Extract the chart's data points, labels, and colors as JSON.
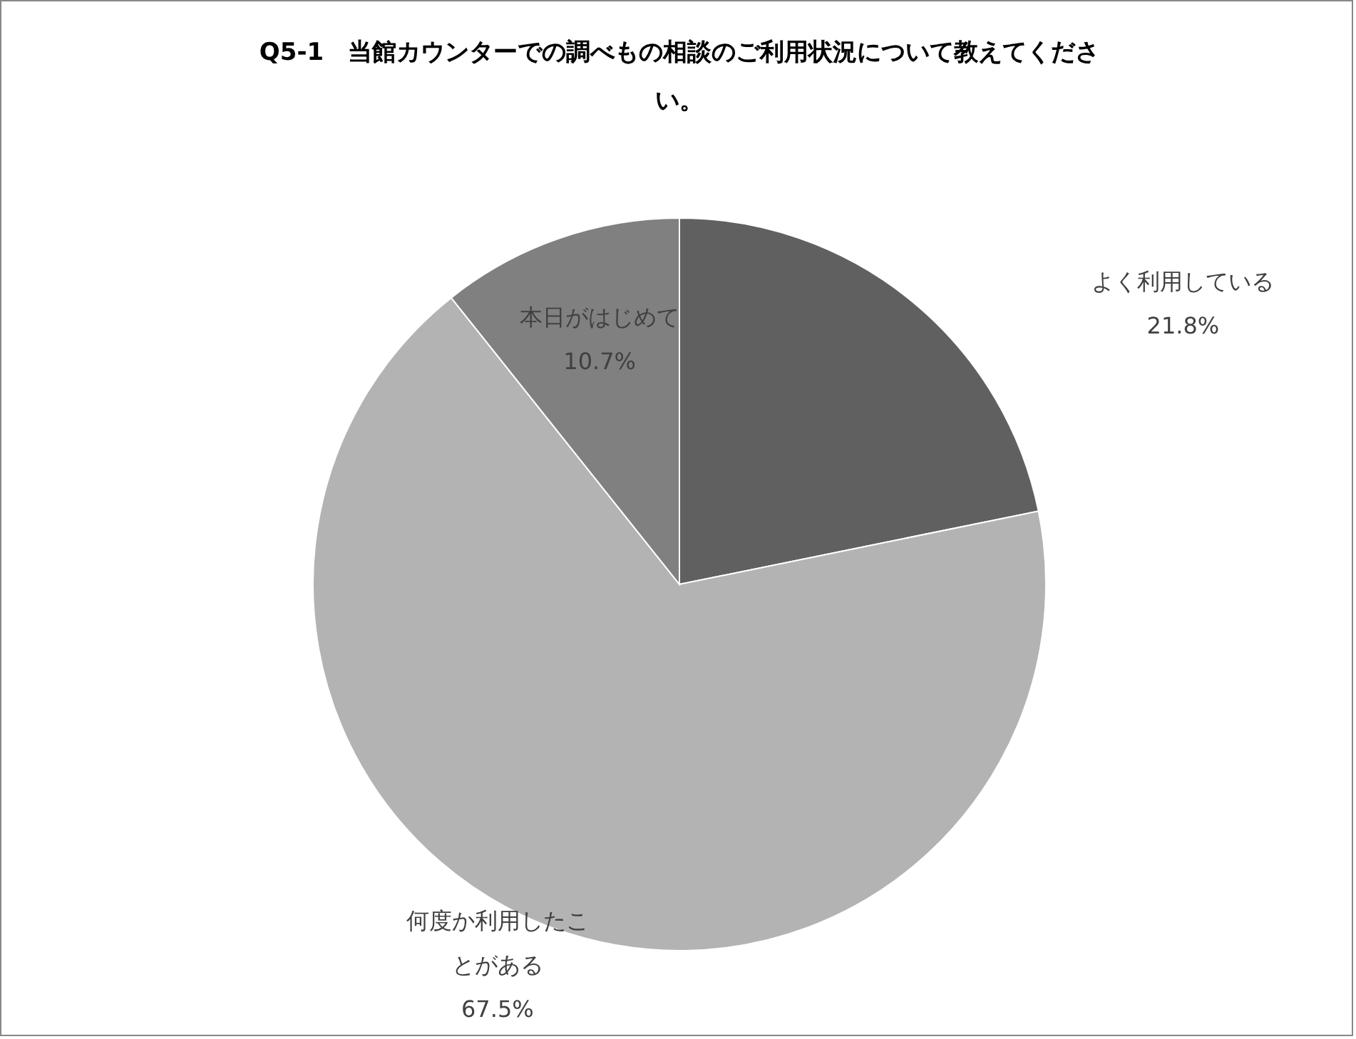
{
  "chart_data": {
    "type": "pie",
    "title": "Q5-1　当館カウンターでの調べもの相談のご利用状況について教えてください。",
    "categories": [
      "よく利用している",
      "何度か利用したことがある",
      "本日がはじめて"
    ],
    "values": [
      21.8,
      67.5,
      10.7
    ],
    "colors": [
      "#606060",
      "#b3b3b3",
      "#808080"
    ],
    "value_labels": [
      "21.8%",
      "67.5%",
      "10.7%"
    ],
    "legend": false
  }
}
